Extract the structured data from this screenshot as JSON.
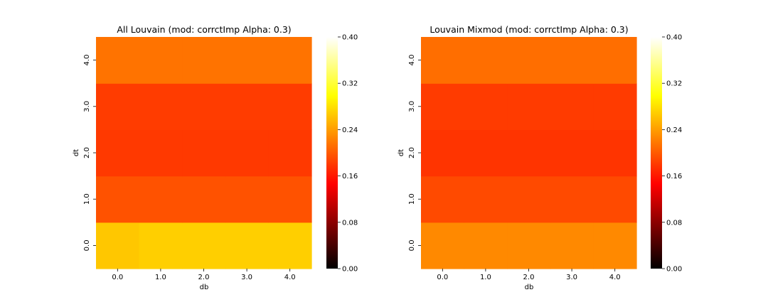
{
  "chart_data": [
    {
      "type": "heatmap",
      "title": "All Louvain (mod: corrctImp Alpha: 0.3)",
      "xlabel": "db",
      "ylabel": "dt",
      "x": [
        "0.0",
        "1.0",
        "2.0",
        "3.0",
        "4.0"
      ],
      "y": [
        "0.0",
        "1.0",
        "2.0",
        "3.0",
        "4.0"
      ],
      "z": [
        [
          0.265,
          0.27,
          0.27,
          0.27,
          0.27
        ],
        [
          0.195,
          0.195,
          0.195,
          0.195,
          0.195
        ],
        [
          0.18,
          0.18,
          0.18,
          0.18,
          0.18
        ],
        [
          0.182,
          0.182,
          0.182,
          0.182,
          0.182
        ],
        [
          0.215,
          0.215,
          0.215,
          0.215,
          0.215
        ]
      ],
      "colorbar": {
        "vmin": 0.0,
        "vmax": 0.4,
        "ticks": [
          "0.00",
          "0.08",
          "0.16",
          "0.24",
          "0.32",
          "0.40"
        ],
        "colormap": "hot"
      }
    },
    {
      "type": "heatmap",
      "title": "Louvain Mixmod (mod: corrctImp Alpha: 0.3)",
      "xlabel": "db",
      "ylabel": "dt",
      "x": [
        "0.0",
        "1.0",
        "2.0",
        "3.0",
        "4.0"
      ],
      "y": [
        "0.0",
        "1.0",
        "2.0",
        "3.0",
        "4.0"
      ],
      "z": [
        [
          0.228,
          0.228,
          0.228,
          0.228,
          0.228
        ],
        [
          0.19,
          0.19,
          0.19,
          0.19,
          0.19
        ],
        [
          0.177,
          0.177,
          0.177,
          0.177,
          0.177
        ],
        [
          0.181,
          0.181,
          0.181,
          0.181,
          0.181
        ],
        [
          0.212,
          0.212,
          0.212,
          0.212,
          0.212
        ]
      ],
      "colorbar": {
        "vmin": 0.0,
        "vmax": 0.4,
        "ticks": [
          "0.00",
          "0.08",
          "0.16",
          "0.24",
          "0.32",
          "0.40"
        ],
        "colormap": "hot"
      }
    }
  ]
}
